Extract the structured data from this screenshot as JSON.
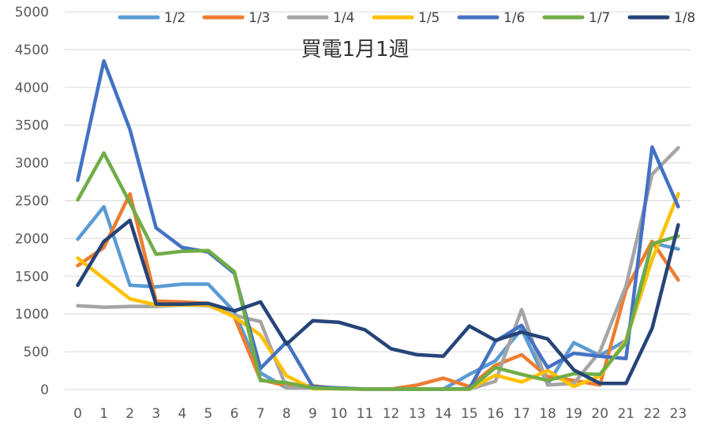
{
  "chart_data": {
    "type": "line",
    "title": "買電1月1週",
    "xlabel": "",
    "ylabel": "",
    "ylim": [
      0,
      5000
    ],
    "y_ticks": [
      0,
      500,
      1000,
      1500,
      2000,
      2500,
      3000,
      3500,
      4000,
      4500,
      5000
    ],
    "x": [
      0,
      1,
      2,
      3,
      4,
      5,
      6,
      7,
      8,
      9,
      10,
      11,
      12,
      13,
      14,
      15,
      16,
      17,
      18,
      19,
      20,
      21,
      22,
      23
    ],
    "grid": true,
    "legend_position": "top",
    "series": [
      {
        "name": "1/2",
        "color": "#5b9bd5",
        "values": [
          1990,
          2420,
          1380,
          1360,
          1395,
          1395,
          1030,
          220,
          20,
          20,
          20,
          5,
          5,
          5,
          5,
          200,
          380,
          800,
          70,
          620,
          450,
          650,
          1940,
          1860
        ]
      },
      {
        "name": "1/3",
        "color": "#ed7d31",
        "values": [
          1640,
          1880,
          2590,
          1170,
          1160,
          1140,
          960,
          130,
          50,
          50,
          10,
          5,
          5,
          60,
          150,
          40,
          320,
          460,
          170,
          120,
          60,
          1320,
          1960,
          1450
        ]
      },
      {
        "name": "1/4",
        "color": "#a5a5a5",
        "values": [
          1110,
          1090,
          1100,
          1100,
          1120,
          1110,
          980,
          900,
          20,
          20,
          10,
          5,
          5,
          5,
          5,
          5,
          110,
          1060,
          60,
          80,
          500,
          1370,
          2850,
          3200
        ]
      },
      {
        "name": "1/5",
        "color": "#ffc000",
        "values": [
          1740,
          1470,
          1200,
          1120,
          1120,
          1120,
          960,
          720,
          180,
          10,
          10,
          5,
          5,
          5,
          5,
          5,
          190,
          100,
          250,
          40,
          180,
          650,
          1720,
          2590
        ]
      },
      {
        "name": "1/6",
        "color": "#4472c4",
        "values": [
          2770,
          4350,
          3440,
          2140,
          1880,
          1820,
          1540,
          280,
          630,
          40,
          20,
          5,
          5,
          5,
          5,
          10,
          640,
          850,
          290,
          480,
          440,
          410,
          3210,
          2420
        ]
      },
      {
        "name": "1/7",
        "color": "#70ad47",
        "values": [
          2510,
          3130,
          2470,
          1790,
          1830,
          1840,
          1560,
          120,
          90,
          20,
          10,
          5,
          5,
          5,
          5,
          5,
          290,
          200,
          120,
          210,
          200,
          620,
          1930,
          2030
        ]
      },
      {
        "name": "1/8",
        "color": "#264478",
        "values": [
          1380,
          1960,
          2240,
          1130,
          1130,
          1140,
          1040,
          1160,
          600,
          910,
          890,
          790,
          540,
          460,
          440,
          840,
          650,
          760,
          670,
          260,
          80,
          80,
          810,
          2180
        ]
      }
    ]
  }
}
